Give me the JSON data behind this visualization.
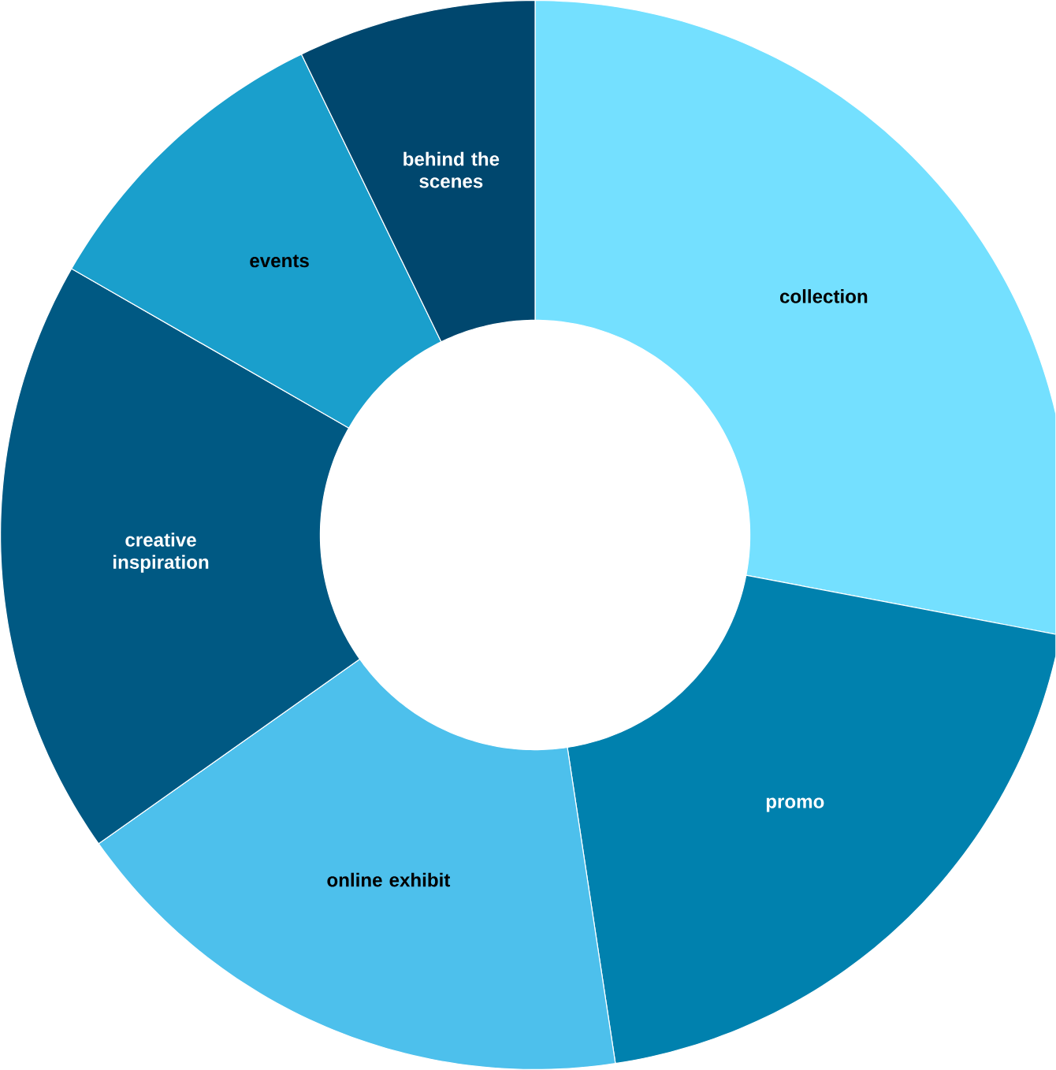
{
  "chart_data": {
    "type": "donut",
    "categories": [
      "collection",
      "promo",
      "online exhibit",
      "creative inspiration",
      "events",
      "behind the scenes"
    ],
    "values": [
      28,
      19.6,
      17.6,
      18.1,
      9.5,
      7.2
    ],
    "colors": [
      "#74e0ff",
      "#0081ae",
      "#4dc0ec",
      "#005983",
      "#1a9fcc",
      "#00476e"
    ]
  }
}
